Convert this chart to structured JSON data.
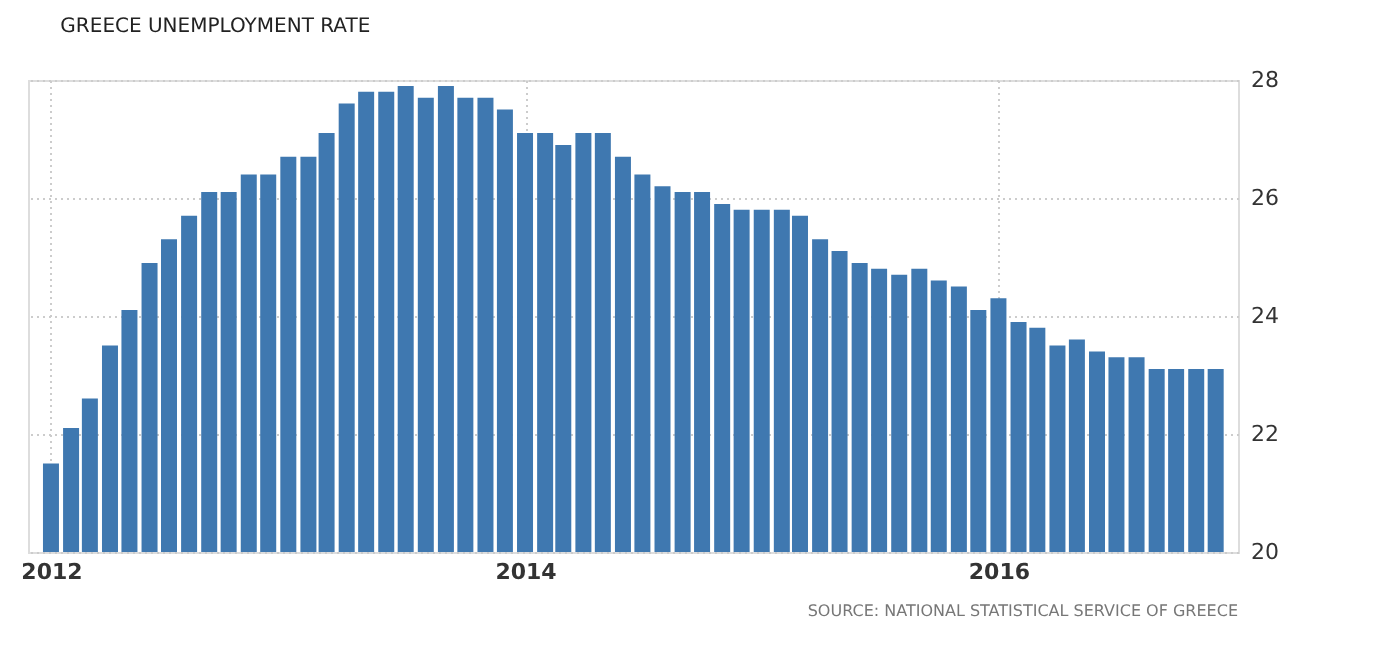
{
  "chart_data": {
    "type": "bar",
    "title": "GREECE UNEMPLOYMENT RATE",
    "x": [
      "2012-01",
      "2012-02",
      "2012-03",
      "2012-04",
      "2012-05",
      "2012-06",
      "2012-07",
      "2012-08",
      "2012-09",
      "2012-10",
      "2012-11",
      "2012-12",
      "2013-01",
      "2013-02",
      "2013-03",
      "2013-04",
      "2013-05",
      "2013-06",
      "2013-07",
      "2013-08",
      "2013-09",
      "2013-10",
      "2013-11",
      "2013-12",
      "2014-01",
      "2014-02",
      "2014-03",
      "2014-04",
      "2014-05",
      "2014-06",
      "2014-07",
      "2014-08",
      "2014-09",
      "2014-10",
      "2014-11",
      "2014-12",
      "2015-01",
      "2015-02",
      "2015-03",
      "2015-04",
      "2015-05",
      "2015-06",
      "2015-07",
      "2015-08",
      "2015-09",
      "2015-10",
      "2015-11",
      "2015-12",
      "2016-01",
      "2016-02",
      "2016-03",
      "2016-04",
      "2016-05",
      "2016-06",
      "2016-07",
      "2016-08",
      "2016-09",
      "2016-10",
      "2016-11",
      "2016-12"
    ],
    "series": [
      {
        "color": "#3f78b0",
        "values": [
          21.5,
          22.1,
          22.6,
          23.5,
          24.1,
          24.9,
          25.3,
          25.7,
          26.1,
          26.1,
          26.4,
          26.4,
          26.7,
          26.7,
          27.1,
          27.6,
          27.8,
          27.8,
          27.9,
          27.7,
          27.9,
          27.7,
          27.7,
          27.5,
          27.1,
          27.1,
          26.9,
          27.1,
          27.1,
          26.7,
          26.4,
          26.2,
          26.1,
          26.1,
          25.9,
          25.8,
          25.8,
          25.8,
          25.7,
          25.3,
          25.1,
          24.9,
          24.8,
          24.7,
          24.8,
          24.6,
          24.5,
          24.1,
          24.3,
          23.9,
          23.8,
          23.5,
          23.6,
          23.4,
          23.3,
          23.3,
          23.1,
          23.1,
          23.1,
          23.1
        ]
      }
    ],
    "xlim": [
      "2011-12-12",
      "2016-12-20"
    ],
    "xticks": [
      {
        "value": "2012-01",
        "label": "2012"
      },
      {
        "value": "2014-01",
        "label": "2014"
      },
      {
        "value": "2016-01",
        "label": "2016"
      }
    ],
    "ylim": [
      20,
      28
    ],
    "yticks": [
      20,
      22,
      24,
      26,
      28
    ],
    "grid": true,
    "annotations": [
      "SOURCE: NATIONAL STATISTICAL SERVICE OF GREECE"
    ]
  }
}
